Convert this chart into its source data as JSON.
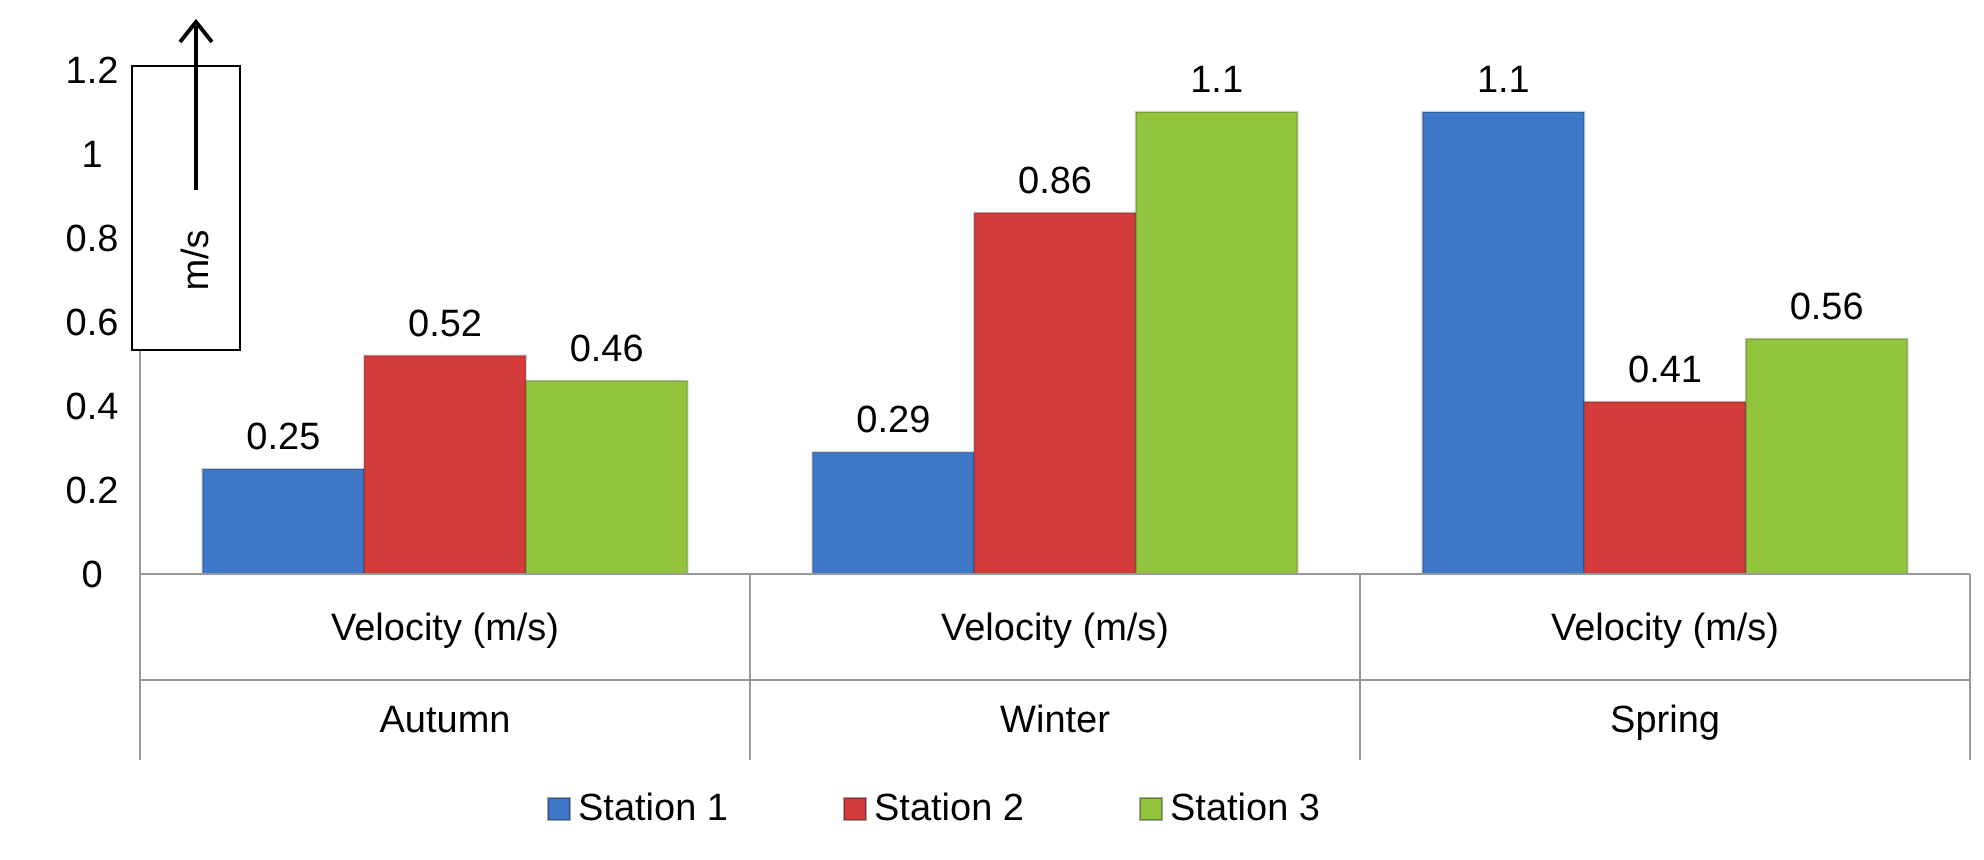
{
  "chart_data": {
    "type": "bar",
    "categories": [
      "Autumn",
      "Winter",
      "Spring"
    ],
    "series": [
      {
        "name": "Station 1",
        "color": "#3f78c8",
        "values": [
          0.25,
          0.29,
          1.1
        ]
      },
      {
        "name": "Station 2",
        "color": "#d43b3b",
        "values": [
          0.52,
          0.86,
          0.41
        ]
      },
      {
        "name": "Station 3",
        "color": "#92c43e",
        "values": [
          0.46,
          1.1,
          0.56
        ]
      }
    ],
    "ylabel": "m/s",
    "ylim": [
      0,
      1.2
    ],
    "yticks": [
      0,
      0.2,
      0.4,
      0.6,
      0.8,
      1,
      1.2
    ],
    "annotations": [
      "Velocity (m/s)",
      "Velocity (m/s)",
      "Velocity (m/s)"
    ],
    "data_labels": true,
    "grid": false,
    "legend": "bottom"
  }
}
